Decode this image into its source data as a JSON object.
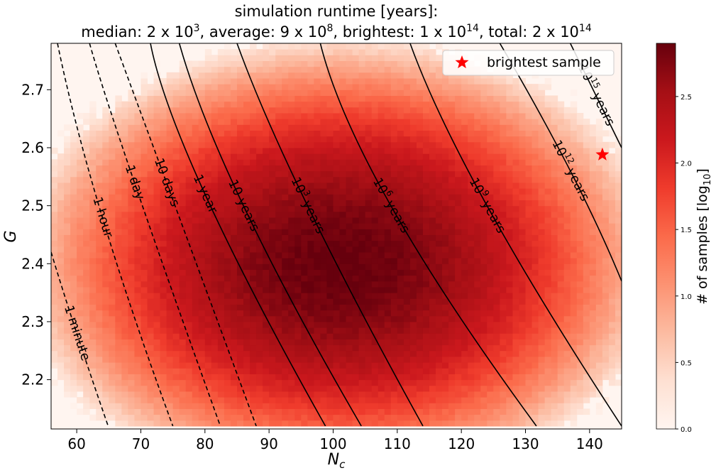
{
  "chart_data": {
    "type": "heatmap",
    "title_line1": "simulation runtime [years]:",
    "title_line2": "median: 2 x 10^3, average: 9 x 10^8, brightest: 1 x 10^14, total: 2 x 10^14",
    "xlabel": "N",
    "xlabel_sub": "c",
    "ylabel": "G",
    "xlim": [
      56,
      145
    ],
    "ylim": [
      2.115,
      2.78
    ],
    "x_ticks": [
      60,
      70,
      80,
      90,
      100,
      110,
      120,
      130,
      140
    ],
    "y_ticks": [
      2.2,
      2.3,
      2.4,
      2.5,
      2.6,
      2.7
    ],
    "colorbar": {
      "label": "# of samples [log",
      "label_sub": "10",
      "label_end": "]",
      "range": [
        0.0,
        2.9
      ],
      "ticks": [
        "0.0",
        "0.5",
        "1.0",
        "1.5",
        "2.0",
        "2.5"
      ],
      "colormap": "Reds"
    },
    "density_peak": {
      "x": 101,
      "y": 2.4,
      "max_log10_count": 2.9
    },
    "contours": [
      {
        "label": "1 minute",
        "style": "dashed",
        "points": [
          [
            56.0,
            2.42
          ],
          [
            60.0,
            2.28
          ],
          [
            64.9,
            2.12
          ]
        ]
      },
      {
        "label": "1 hour",
        "style": "dashed",
        "points": [
          [
            57.0,
            2.78
          ],
          [
            64.0,
            2.48
          ],
          [
            75.0,
            2.12
          ]
        ]
      },
      {
        "label": "1 day",
        "style": "dashed",
        "points": [
          [
            62.0,
            2.78
          ],
          [
            69.0,
            2.54
          ],
          [
            82.4,
            2.12
          ]
        ]
      },
      {
        "label": "10 days",
        "style": "dashed",
        "points": [
          [
            66.0,
            2.78
          ],
          [
            74.0,
            2.54
          ],
          [
            88.0,
            2.12
          ]
        ]
      },
      {
        "label": "1 year",
        "style": "solid",
        "points": [
          [
            71.5,
            2.78
          ],
          [
            80.0,
            2.52
          ],
          [
            98.8,
            2.12
          ]
        ]
      },
      {
        "label": "10 years",
        "style": "solid",
        "points": [
          [
            76.0,
            2.78
          ],
          [
            86.0,
            2.5
          ],
          [
            104.4,
            2.12
          ]
        ]
      },
      {
        "label": "10^3 years",
        "style": "solid",
        "points": [
          [
            85.0,
            2.78
          ],
          [
            96.0,
            2.5
          ],
          [
            114.0,
            2.12
          ]
        ]
      },
      {
        "label": "10^6 years",
        "style": "solid",
        "points": [
          [
            98.0,
            2.78
          ],
          [
            109.0,
            2.5
          ],
          [
            131.7,
            2.12
          ]
        ]
      },
      {
        "label": "10^9 years",
        "style": "solid",
        "points": [
          [
            112.0,
            2.78
          ],
          [
            124.0,
            2.5
          ],
          [
            145.0,
            2.12
          ]
        ]
      },
      {
        "label": "10^12 years",
        "style": "solid",
        "points": [
          [
            126.0,
            2.78
          ],
          [
            137.0,
            2.56
          ],
          [
            145.0,
            2.37
          ]
        ]
      },
      {
        "label": "10^15 years",
        "style": "solid",
        "points": [
          [
            137.0,
            2.78
          ],
          [
            145.0,
            2.6
          ]
        ]
      }
    ],
    "brightest_sample": {
      "x": 142,
      "y": 2.588
    },
    "legend": {
      "entries": [
        "brightest sample"
      ],
      "placement": "top-right"
    },
    "colors": {
      "marker": "#ff0000",
      "contour": "#000000"
    }
  }
}
